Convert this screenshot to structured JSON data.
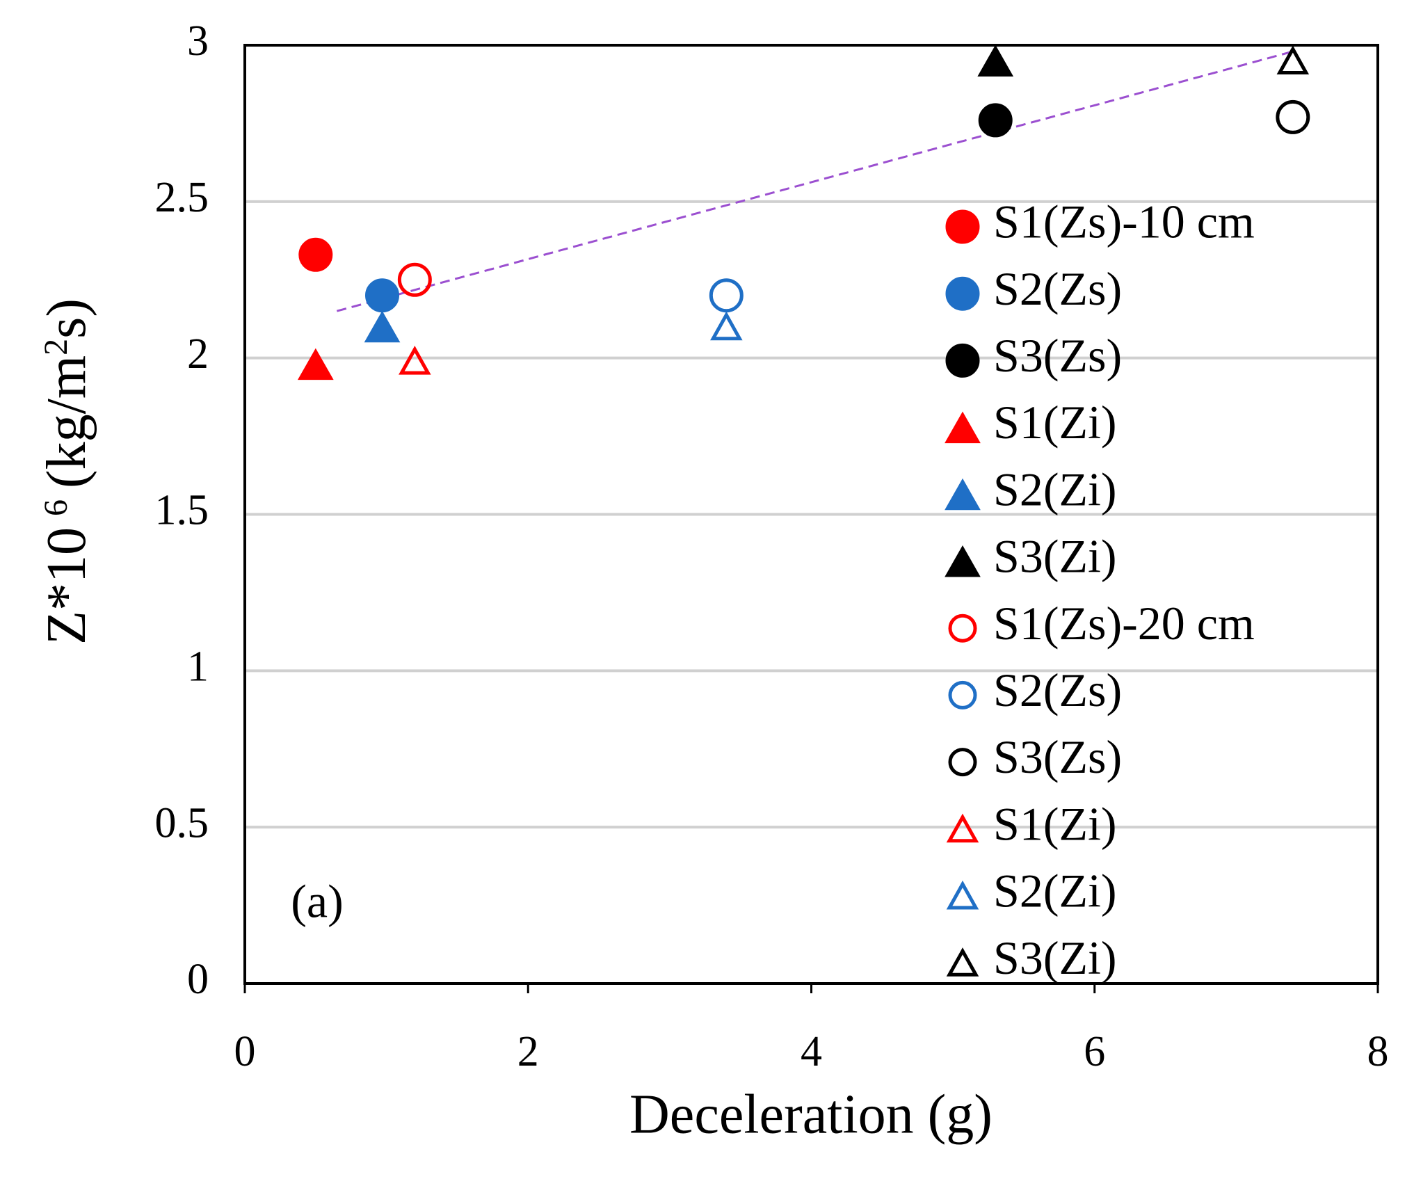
{
  "chart_data": {
    "type": "scatter",
    "xlabel": "Deceleration (g)",
    "ylabel": [
      "Z*10",
      "6",
      "(kg/m",
      "2",
      "s)"
    ],
    "annotation": "(a)",
    "xlim": [
      0,
      8
    ],
    "xticks": [
      0,
      2,
      4,
      6,
      8
    ],
    "ylim": [
      0,
      3
    ],
    "yticks": [
      0,
      0.5,
      1,
      1.5,
      2,
      2.5,
      3
    ],
    "grid": true,
    "series": [
      {
        "name": "S1(Zs)-10 cm",
        "color": "#ff0000",
        "marker": "circle",
        "filled": true,
        "x": [
          0.5
        ],
        "y": [
          2.33
        ]
      },
      {
        "name": "S2(Zs)",
        "color": "#1f6fc6",
        "marker": "circle",
        "filled": true,
        "x": [
          0.97
        ],
        "y": [
          2.2
        ]
      },
      {
        "name": "S3(Zs)",
        "color": "#000000",
        "marker": "circle",
        "filled": true,
        "x": [
          5.3
        ],
        "y": [
          2.76
        ]
      },
      {
        "name": "S1(Zi)",
        "color": "#ff0000",
        "marker": "triangle",
        "filled": true,
        "x": [
          0.5
        ],
        "y": [
          1.98
        ]
      },
      {
        "name": "S2(Zi)",
        "color": "#1f6fc6",
        "marker": "triangle",
        "filled": true,
        "x": [
          0.97
        ],
        "y": [
          2.1
        ]
      },
      {
        "name": "S3(Zi)",
        "color": "#000000",
        "marker": "triangle",
        "filled": true,
        "x": [
          5.3
        ],
        "y": [
          2.95
        ]
      },
      {
        "name": "S1(Zs)-20 cm",
        "color": "#ff0000",
        "marker": "circle",
        "filled": false,
        "x": [
          1.2
        ],
        "y": [
          2.25
        ]
      },
      {
        "name": "S2(Zs)",
        "color": "#1f6fc6",
        "marker": "circle",
        "filled": false,
        "x": [
          3.4
        ],
        "y": [
          2.2
        ]
      },
      {
        "name": "S3(Zs)",
        "color": "#000000",
        "marker": "circle",
        "filled": false,
        "x": [
          7.4
        ],
        "y": [
          2.77
        ]
      },
      {
        "name": "S1(Zi)",
        "color": "#ff0000",
        "marker": "triangle",
        "filled": false,
        "x": [
          1.2
        ],
        "y": [
          1.99
        ]
      },
      {
        "name": "S2(Zi)",
        "color": "#1f6fc6",
        "marker": "triangle",
        "filled": false,
        "x": [
          3.4
        ],
        "y": [
          2.1
        ]
      },
      {
        "name": "S3(Zi)",
        "color": "#000000",
        "marker": "triangle",
        "filled": false,
        "x": [
          7.4
        ],
        "y": [
          2.95
        ]
      }
    ],
    "trendline": {
      "color": "#9b4fd0",
      "x": [
        0.65,
        7.4
      ],
      "y": [
        2.15,
        2.98
      ]
    }
  }
}
